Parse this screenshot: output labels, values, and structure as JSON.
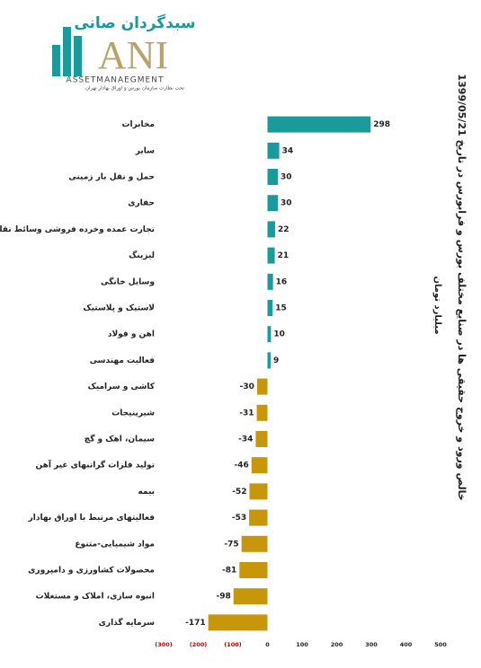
{
  "logo": {
    "name": "سبدگردان صانی",
    "mark": "ANI",
    "tagline": "ASSETMANAEGMENT",
    "note": "تحت نظارت سازمان بورس و اوراق بهادار تهران"
  },
  "chart_data": {
    "type": "hbar",
    "title": "خالص ورود و خروج حقیقی ها در صنایع مختلف بورس و فرابورس در تاریخ 1399/05/21",
    "subtitle": "میلیارد تومان",
    "categories": [
      "مخابرات",
      "سایر",
      "حمل و نقل بار زمینی",
      "حفاری",
      "تجارت عمده وخرده فروشی وسائط نقلیه موتوری",
      "لیزینگ",
      "وسایل خانگی",
      "لاستیک و پلاستیک",
      "اهن و فولاد",
      "فعالیت مهندسی",
      "کاشی و سرامیک",
      "شیرینیجات",
      "سیمان، اهک و گچ",
      "تولید فلزات گرانبهای غیر آهن",
      "بیمه",
      "فعالیتهای مرتبط با اوراق بهادار",
      "مواد شیمیایی-متنوع",
      "محصولات کشاورزی و دامپروری",
      "انبوه سازی، املاک و مستغلات",
      "سرمایه گذاری"
    ],
    "values": [
      298,
      34,
      30,
      30,
      22,
      21,
      16,
      15,
      10,
      9,
      -30,
      -31,
      -34,
      -46,
      -52,
      -53,
      -75,
      -81,
      -98,
      -171
    ],
    "positive_color": "#1a9a9a",
    "negative_color": "#c8960a",
    "negative_tick_color": "#c00000",
    "xlim": [
      -300,
      500
    ],
    "xticks": [
      {
        "value": -300,
        "label": "(300)"
      },
      {
        "value": -200,
        "label": "(200)"
      },
      {
        "value": -100,
        "label": "(100)"
      },
      0,
      100,
      200,
      300,
      400,
      500
    ]
  }
}
